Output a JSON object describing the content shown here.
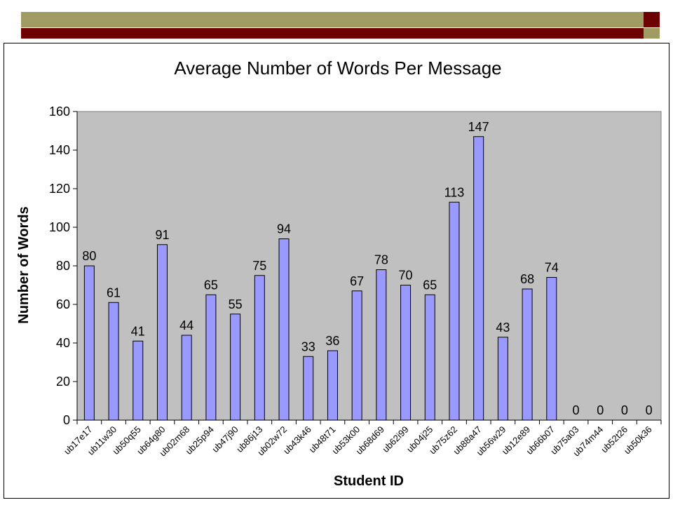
{
  "colors": {
    "banner_olive": "#a09b62",
    "banner_maroon": "#6d0000",
    "plot_bg": "#c0c0c0",
    "bar_fill": "#9999ff",
    "bar_stroke": "#000000"
  },
  "chart_data": {
    "type": "bar",
    "title": "Average Number of Words Per Message",
    "xlabel": "Student ID",
    "ylabel": "Number of Words",
    "ylim": [
      0,
      160
    ],
    "yticks": [
      0,
      20,
      40,
      60,
      80,
      100,
      120,
      140,
      160
    ],
    "grid": false,
    "legend": "none",
    "categories": [
      "ub17e17",
      "ub11w30",
      "ub50q55",
      "ub64g80",
      "ub02m68",
      "ub25p94",
      "ub47j90",
      "ub86j13",
      "ub02w72",
      "ub43k46",
      "ub48t71",
      "ub53k00",
      "ub68d69",
      "ub62i99",
      "ub04j25",
      "ub75z62",
      "ub88a47",
      "ub56w29",
      "ub12e89",
      "ub66b07",
      "ub75a03",
      "ub74m44",
      "ub52t26",
      "ub50k36"
    ],
    "values": [
      80,
      61,
      41,
      91,
      44,
      65,
      55,
      75,
      94,
      33,
      36,
      67,
      78,
      70,
      65,
      113,
      147,
      43,
      68,
      74,
      0,
      0,
      0,
      0
    ]
  }
}
